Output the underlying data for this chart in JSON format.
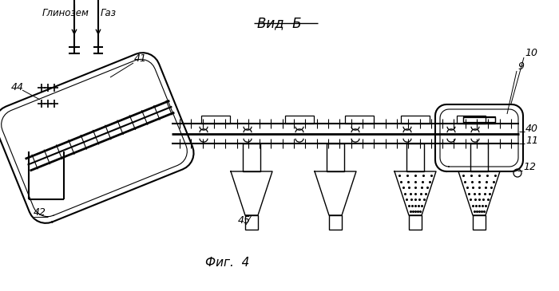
{
  "title": "Вид  Б",
  "caption": "Фиг.  4",
  "bg_color": "#ffffff",
  "line_color": "#000000",
  "labels": {
    "glinozem": "Глинозем",
    "gaz": "Газ",
    "num_44": "44",
    "num_41": "41",
    "num_42": "42",
    "num_45": "45",
    "num_9": "9",
    "num_10": "10",
    "num_11": "11",
    "num_12": "12",
    "num_40": "40"
  }
}
